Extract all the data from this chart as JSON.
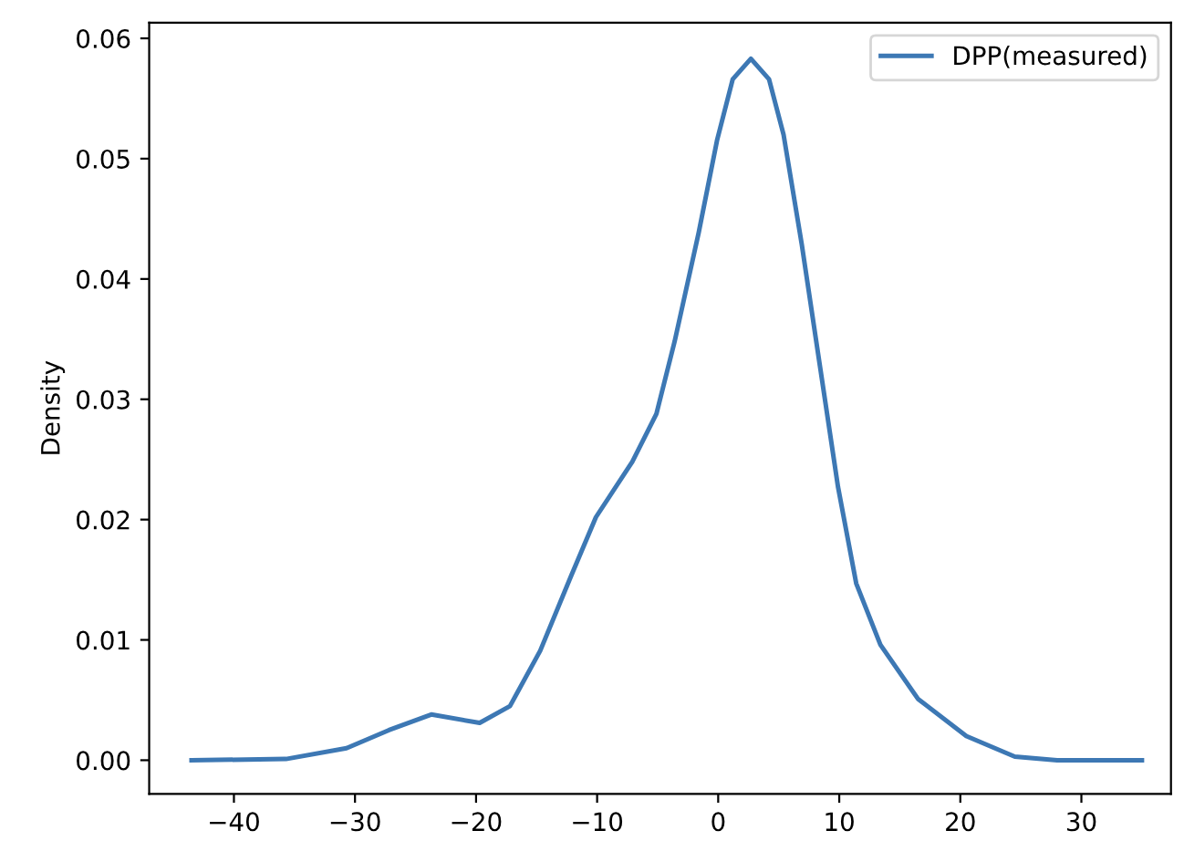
{
  "chart_data": {
    "type": "line",
    "ylabel": "Density",
    "xlim": [
      -47,
      37.4
    ],
    "ylim": [
      -0.0028,
      0.0613
    ],
    "xticks": [
      {
        "value": -40,
        "label": "−40"
      },
      {
        "value": -30,
        "label": "−30"
      },
      {
        "value": -20,
        "label": "−20"
      },
      {
        "value": -10,
        "label": "−10"
      },
      0,
      10,
      20,
      30
    ],
    "yticks": [
      {
        "value": 0,
        "label": "0.00"
      },
      {
        "value": 0.01,
        "label": "0.01"
      },
      {
        "value": 0.02,
        "label": "0.02"
      },
      {
        "value": 0.03,
        "label": "0.03"
      },
      {
        "value": 0.04,
        "label": "0.04"
      },
      {
        "value": 0.05,
        "label": "0.05"
      },
      {
        "value": 0.06,
        "label": "0.06"
      }
    ],
    "grid": false,
    "legend": "top right",
    "series": [
      {
        "name": "DPP(measured)",
        "color": "#3d78b4",
        "x": [
          -43.5,
          -35.7,
          -30.7,
          -27.2,
          -23.7,
          -19.7,
          -17.2,
          -14.7,
          -12.2,
          -10.1,
          -7.1,
          -5.1,
          -3.6,
          -1.6,
          -0.1,
          1.2,
          2.7,
          4.2,
          5.4,
          6.9,
          8.4,
          9.9,
          11.4,
          13.4,
          16.5,
          20.5,
          24.5,
          28.0,
          35.0
        ],
        "values": [
          0.0,
          0.0001,
          0.001,
          0.0025,
          0.0038,
          0.0031,
          0.0045,
          0.0091,
          0.0152,
          0.0202,
          0.0248,
          0.0288,
          0.0348,
          0.0439,
          0.0515,
          0.0566,
          0.0583,
          0.0566,
          0.052,
          0.0429,
          0.0328,
          0.0227,
          0.0147,
          0.0096,
          0.0051,
          0.002,
          0.0003,
          0.0,
          0.0
        ]
      }
    ]
  }
}
